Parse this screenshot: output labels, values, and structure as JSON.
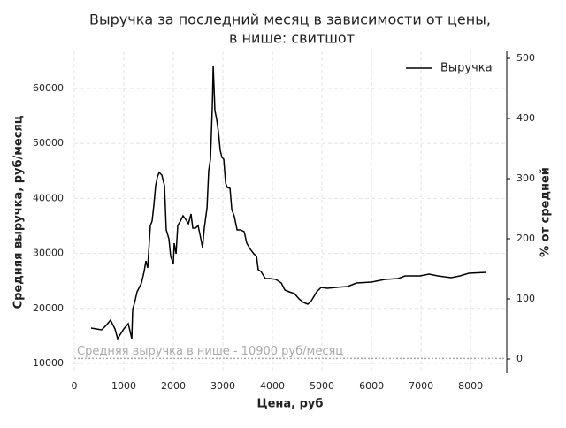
{
  "chart_data": {
    "type": "line",
    "title": [
      "Выручка за последний месяц в зависимости от цены,",
      "в нише: свитшот"
    ],
    "xlabel": "Цена, руб",
    "ylabel": "Средняя выручка, руб/месяц",
    "y2label": "% от средней",
    "x": [
      339,
      554,
      643,
      732,
      821,
      875,
      1000,
      1089,
      1161,
      1179,
      1214,
      1268,
      1357,
      1411,
      1446,
      1482,
      1536,
      1571,
      1607,
      1643,
      1679,
      1714,
      1768,
      1821,
      1857,
      1911,
      1946,
      2000,
      2018,
      2054,
      2089,
      2143,
      2196,
      2250,
      2304,
      2357,
      2393,
      2446,
      2500,
      2554,
      2589,
      2625,
      2679,
      2714,
      2750,
      2786,
      2804,
      2839,
      2875,
      2911,
      2946,
      2982,
      3018,
      3054,
      3089,
      3143,
      3179,
      3232,
      3286,
      3357,
      3429,
      3482,
      3554,
      3625,
      3679,
      3714,
      3768,
      3857,
      3946,
      4071,
      4179,
      4250,
      4339,
      4446,
      4536,
      4625,
      4714,
      4786,
      4893,
      4982,
      5107,
      5286,
      5518,
      5696,
      6000,
      6268,
      6536,
      6679,
      6982,
      7161,
      7339,
      7607,
      7786,
      7964,
      8321
    ],
    "series": [
      {
        "name": "Выручка",
        "color": "#000000",
        "values": [
          16430,
          16110,
          16910,
          17880,
          16270,
          14500,
          16270,
          17230,
          14500,
          19810,
          20930,
          23020,
          24630,
          26720,
          28650,
          27360,
          35080,
          35880,
          38780,
          42310,
          43920,
          44730,
          44240,
          42310,
          34280,
          32670,
          29450,
          28170,
          31860,
          29940,
          35080,
          35880,
          36850,
          36210,
          35400,
          37170,
          34600,
          34600,
          35080,
          32670,
          31060,
          34600,
          38300,
          45050,
          47140,
          56780,
          64020,
          55980,
          54370,
          51960,
          48750,
          47460,
          47140,
          42800,
          41990,
          41830,
          37970,
          36690,
          34280,
          34280,
          33950,
          31860,
          30740,
          29940,
          29450,
          27040,
          26720,
          25430,
          25430,
          25270,
          24630,
          23340,
          23020,
          22700,
          21740,
          21090,
          20770,
          21410,
          23020,
          23830,
          23670,
          23830,
          23990,
          24630,
          24790,
          25270,
          25430,
          25920,
          25920,
          26240,
          25920,
          25590,
          25920,
          26400,
          26560
        ]
      }
    ],
    "average": 10900,
    "average_label": "Средняя выручка в нише - 10900 руб/месяц",
    "average_color": "#aaaaaa",
    "xlim": [
      0,
      8730
    ],
    "xticks": [
      0,
      1000,
      2000,
      3000,
      4000,
      5000,
      6000,
      7000,
      8000
    ],
    "ylim": [
      8230,
      66750
    ],
    "yticks": [
      10000,
      20000,
      30000,
      40000,
      50000,
      60000
    ],
    "y2lim": [
      -23.5,
      511.8
    ],
    "y2ticks": [
      0,
      100,
      200,
      300,
      400,
      500
    ],
    "grid": true,
    "legend": "upper right"
  }
}
